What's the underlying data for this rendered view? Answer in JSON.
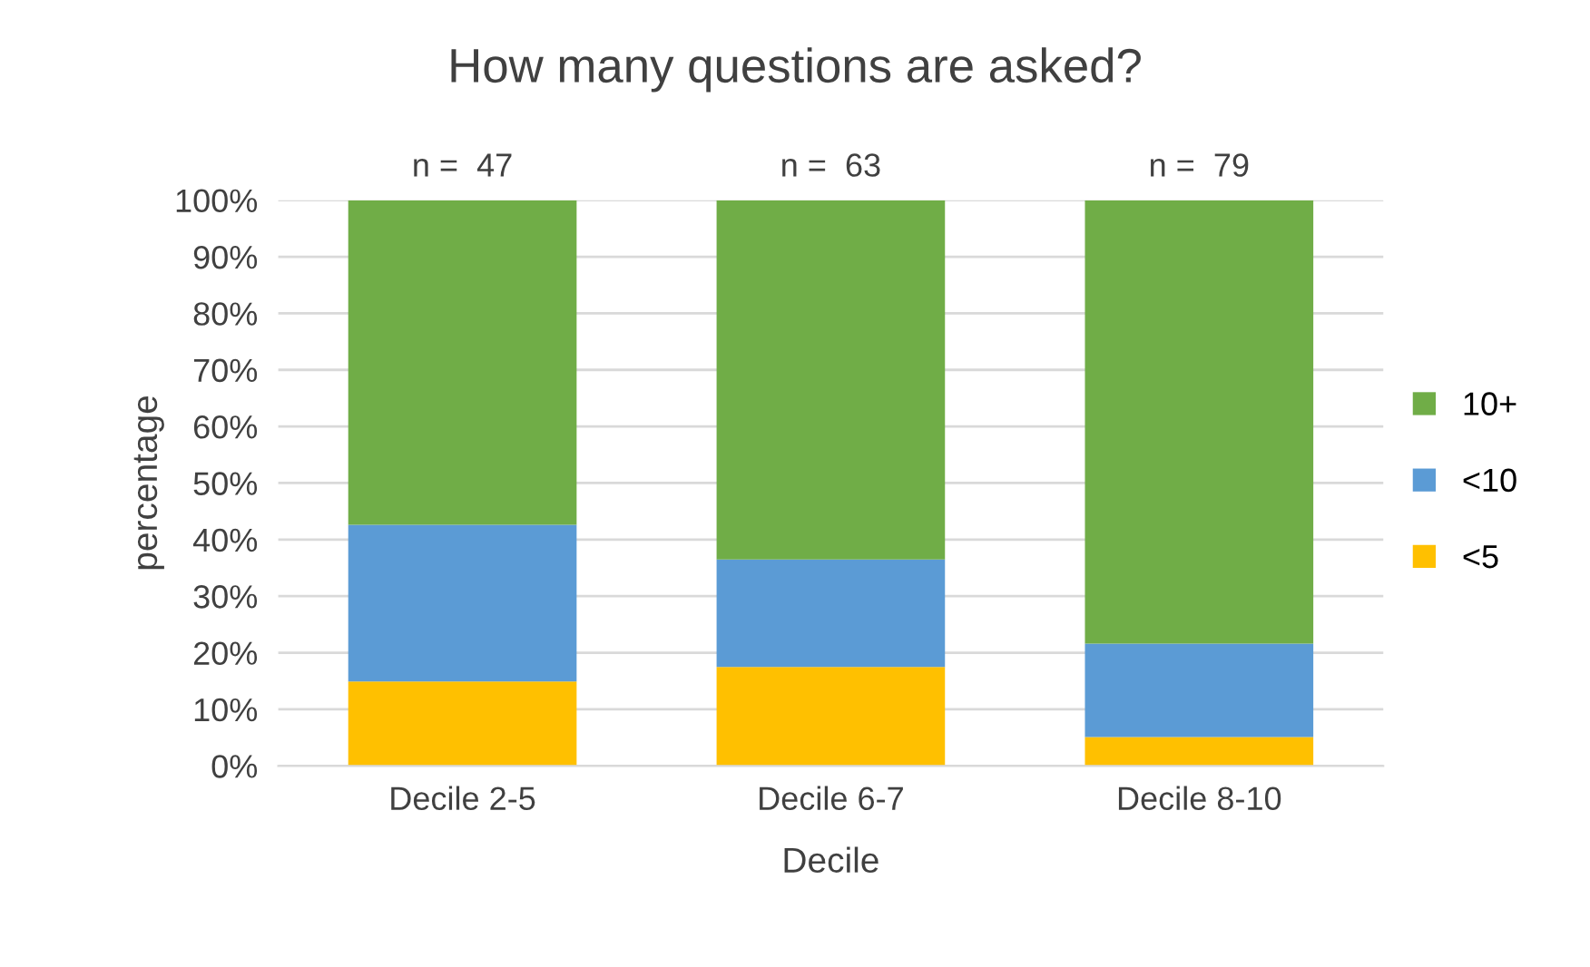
{
  "chart_data": {
    "type": "bar",
    "title": "How many questions are asked?",
    "xlabel": "Decile",
    "ylabel": "percentage",
    "categories": [
      "Decile 2-5",
      "Decile 6-7",
      "Decile 8-10"
    ],
    "stacked": true,
    "series": [
      {
        "name": "<5",
        "color": "#ffc000",
        "values": [
          14.9,
          17.5,
          5.1
        ]
      },
      {
        "name": "<10",
        "color": "#5b9bd5",
        "values": [
          27.7,
          19.0,
          16.5
        ]
      },
      {
        "name": "10+",
        "color": "#70ad47",
        "values": [
          57.4,
          63.5,
          78.4
        ]
      }
    ],
    "ylim": [
      0,
      100
    ],
    "yticks": [
      {
        "value": 0,
        "label": "0%"
      },
      {
        "value": 10,
        "label": "10%"
      },
      {
        "value": 20,
        "label": "20%"
      },
      {
        "value": 30,
        "label": "30%"
      },
      {
        "value": 40,
        "label": "40%"
      },
      {
        "value": 50,
        "label": "50%"
      },
      {
        "value": 60,
        "label": "60%"
      },
      {
        "value": 70,
        "label": "70%"
      },
      {
        "value": 80,
        "label": "80%"
      },
      {
        "value": 90,
        "label": "90%"
      },
      {
        "value": 100,
        "label": "100%"
      }
    ],
    "grid": "y",
    "legend": "right",
    "annotations": [
      "n =  47",
      "n =  63",
      "n =  79"
    ]
  }
}
